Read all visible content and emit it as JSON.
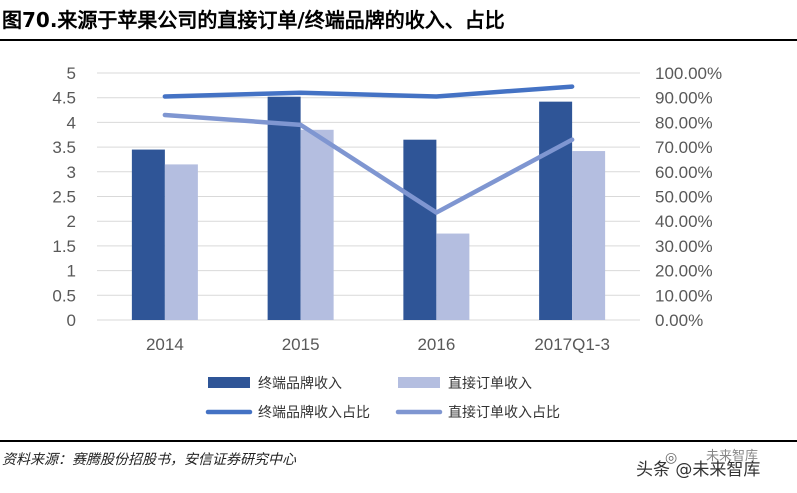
{
  "header": {
    "title": "图70.来源于苹果公司的直接订单/终端品牌的收入、占比"
  },
  "footer": {
    "source": "资料来源：赛腾股份招股书，安信证券研究中心"
  },
  "watermark": {
    "text": "头条 @未来智库",
    "top_text": "未来智库"
  },
  "chart_data": {
    "type": "bar",
    "categories": [
      "2014",
      "2015",
      "2016",
      "2017Q1-3"
    ],
    "series": [
      {
        "name": "终端品牌收入",
        "kind": "bar",
        "axis": "left",
        "color": "#2F5597",
        "values": [
          3.45,
          4.52,
          3.65,
          4.42
        ]
      },
      {
        "name": "直接订单收入",
        "kind": "bar",
        "axis": "left",
        "color": "#B4BEE0",
        "values": [
          3.15,
          3.85,
          1.75,
          3.42
        ]
      },
      {
        "name": "终端品牌收入占比",
        "kind": "line",
        "axis": "right",
        "color": "#4472C4",
        "values": [
          90.5,
          92.0,
          90.5,
          94.5
        ]
      },
      {
        "name": "直接订单收入占比",
        "kind": "line",
        "axis": "right",
        "color": "#7F96D1",
        "values": [
          83.0,
          79.0,
          43.5,
          73.0
        ]
      }
    ],
    "left_ylim": [
      0,
      5
    ],
    "left_ticks": [
      "0",
      "0.5",
      "1",
      "1.5",
      "2",
      "2.5",
      "3",
      "3.5",
      "4",
      "4.5",
      "5"
    ],
    "right_ylim": [
      0,
      100
    ],
    "right_ticks": [
      "0.00%",
      "10.00%",
      "20.00%",
      "30.00%",
      "40.00%",
      "50.00%",
      "60.00%",
      "70.00%",
      "80.00%",
      "90.00%",
      "100.00%"
    ],
    "grid": true,
    "legend": "bottom"
  }
}
